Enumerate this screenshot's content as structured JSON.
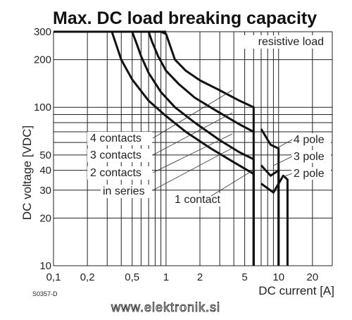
{
  "page": {
    "code": "S0357-D",
    "website": "www.elektronik.si"
  },
  "chart_data": {
    "type": "line",
    "title": "Max. DC load breaking capacity",
    "xlabel": "DC current [A]",
    "ylabel": "DC voltage [VDC]",
    "x_scale": "log",
    "y_scale": "log",
    "xlim": [
      0.1,
      30
    ],
    "ylim": [
      10,
      300
    ],
    "x_ticks": [
      0.1,
      0.2,
      0.5,
      1,
      2,
      5,
      10,
      20
    ],
    "x_tick_labels": [
      "0,1",
      "0,2",
      "0,5",
      "1",
      "2",
      "5",
      "10",
      "20"
    ],
    "y_ticks": [
      10,
      20,
      30,
      40,
      50,
      100,
      200,
      300
    ],
    "y_tick_labels": [
      "10",
      "20",
      "30",
      "40",
      "50",
      "100",
      "200",
      "300"
    ],
    "grid": true,
    "annotations": [
      {
        "id": "resistive",
        "text": "resistive load"
      },
      {
        "id": "c4",
        "text": "4 contacts"
      },
      {
        "id": "c3",
        "text": "3 contacts"
      },
      {
        "id": "c2",
        "text": "2 contacts"
      },
      {
        "id": "series",
        "text": "in series"
      },
      {
        "id": "c1",
        "text": "1 contact"
      },
      {
        "id": "p4",
        "text": "4 pole"
      },
      {
        "id": "p3",
        "text": "3 pole"
      },
      {
        "id": "p2",
        "text": "2 pole"
      }
    ],
    "series": [
      {
        "id": "1-contact",
        "x": [
          0.33,
          0.36,
          0.4,
          0.5,
          0.7,
          1.0,
          1.5,
          2.5,
          4.0,
          6.0,
          6.0
        ],
        "y": [
          300,
          250,
          200,
          150,
          110,
          88,
          70,
          55,
          45,
          38,
          10
        ]
      },
      {
        "id": "2-contacts",
        "x": [
          0.5,
          0.55,
          0.6,
          0.7,
          0.9,
          1.2,
          1.8,
          3.0,
          4.5,
          6.0,
          6.0
        ],
        "y": [
          300,
          250,
          210,
          165,
          125,
          100,
          80,
          62,
          52,
          47,
          10
        ]
      },
      {
        "id": "3-contacts",
        "x": [
          0.7,
          0.75,
          0.85,
          1.0,
          1.3,
          1.8,
          2.8,
          4.5,
          6.0
        ],
        "y": [
          300,
          260,
          210,
          170,
          140,
          115,
          95,
          78,
          70
        ]
      },
      {
        "id": "4-contacts",
        "x": [
          0.9,
          1.0,
          1.2,
          1.5,
          2.0,
          3.0,
          4.5,
          6.0,
          6.0
        ],
        "y": [
          300,
          290,
          200,
          170,
          148,
          128,
          110,
          100,
          10
        ]
      },
      {
        "id": "2-pole",
        "x": [
          7.0,
          9.0,
          11.0,
          12.0,
          12.0
        ],
        "y": [
          33,
          29,
          37,
          35,
          10
        ]
      },
      {
        "id": "3-pole",
        "x": [
          7.0,
          8.5,
          10.0,
          10.0
        ],
        "y": [
          43,
          37,
          40,
          10
        ]
      },
      {
        "id": "4-pole",
        "x": [
          7.0,
          8.5,
          10.0,
          10.0
        ],
        "y": [
          73,
          58,
          55,
          10
        ]
      }
    ]
  }
}
